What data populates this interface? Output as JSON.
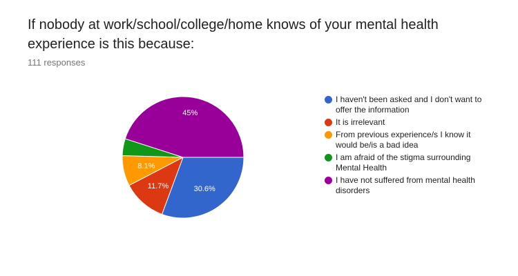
{
  "title": "If nobody at work/school/college/home knows of your mental health experience is this because:",
  "responses": "111 responses",
  "chart_data": {
    "type": "pie",
    "slices": [
      {
        "label": "I haven't been asked and I don't want to offer the information",
        "value": 30.6,
        "data_label": "30.6%",
        "color": "#3366cc"
      },
      {
        "label": "It is irrelevant",
        "value": 11.7,
        "data_label": "11.7%",
        "color": "#dc3912"
      },
      {
        "label": "From previous experience/s I know it would be/is a bad idea",
        "value": 8.1,
        "data_label": "8.1%",
        "color": "#ff9900"
      },
      {
        "label": "I am afraid of the stigma surrounding Mental Health",
        "value": 4.5,
        "data_label": "",
        "color": "#109618"
      },
      {
        "label": "I have not suffered from mental health disorders",
        "value": 45.0,
        "data_label": "45%",
        "color": "#990099"
      }
    ],
    "start_angle_deg": 90,
    "direction": "clockwise",
    "legend_position": "right"
  }
}
